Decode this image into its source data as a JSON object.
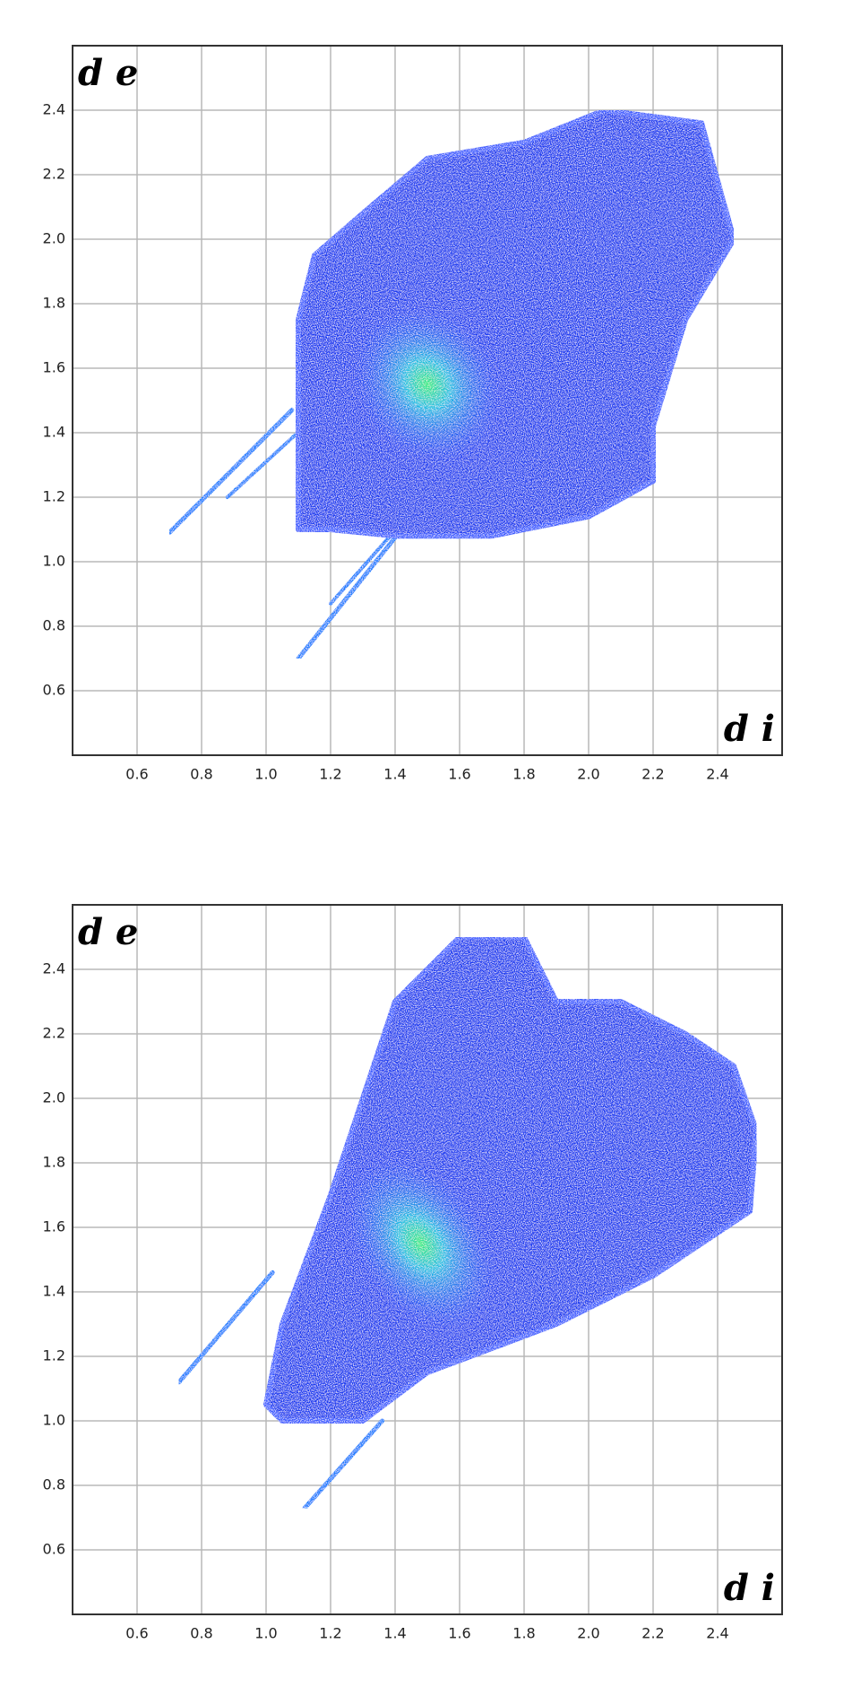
{
  "chart_data": [
    {
      "type": "fingerprint",
      "y_label": "d e",
      "x_label": "d i",
      "xlim": [
        0.4,
        2.6
      ],
      "ylim": [
        0.4,
        2.6
      ],
      "xticks": [
        0.6,
        0.8,
        {
          "value": 1,
          "label": "1.0"
        },
        1.2,
        1.4,
        1.6,
        1.8,
        {
          "value": 2,
          "label": "2.0"
        },
        2.2,
        2.4
      ],
      "yticks": [
        0.6,
        0.8,
        {
          "value": 1,
          "label": "1.0"
        },
        1.2,
        1.4,
        1.6,
        1.8,
        {
          "value": 2,
          "label": "2.0"
        },
        2.2,
        2.4
      ],
      "grid": true
    },
    {
      "type": "fingerprint",
      "y_label": "d e",
      "x_label": "d i",
      "xlim": [
        0.4,
        2.6
      ],
      "ylim": [
        0.4,
        2.6
      ],
      "xticks": [
        0.6,
        0.8,
        {
          "value": 1,
          "label": "1.0"
        },
        1.2,
        1.4,
        1.6,
        1.8,
        {
          "value": 2,
          "label": "2.0"
        },
        2.2,
        2.4
      ],
      "yticks": [
        0.6,
        0.8,
        {
          "value": 1,
          "label": "1.0"
        },
        1.2,
        1.4,
        1.6,
        1.8,
        {
          "value": 2,
          "label": "2.0"
        },
        2.2,
        2.4
      ],
      "grid": true
    }
  ]
}
